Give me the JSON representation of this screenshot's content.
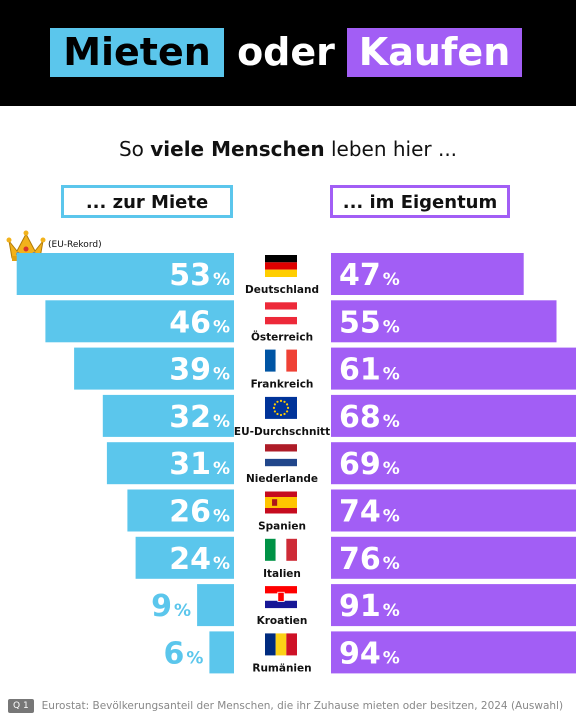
{
  "header": {
    "title_part1": "Mieten",
    "title_part2": "oder",
    "title_part3": "Kaufen"
  },
  "subtitle": {
    "pre": "So ",
    "bold": "viele Menschen",
    "post": " leben hier ..."
  },
  "labels": {
    "left": "... zur Miete",
    "right": "... im Eigentum"
  },
  "annotation": {
    "record": "(EU-Rekord)"
  },
  "colors": {
    "rent": "#5bc6ec",
    "own": "#a25ef5",
    "header_bg": "#000000"
  },
  "chart_data": {
    "type": "bar",
    "categories": [
      "Deutschland",
      "Österreich",
      "Frankreich",
      "EU-Durchschnitt",
      "Niederlande",
      "Spanien",
      "Italien",
      "Kroatien",
      "Rumänien"
    ],
    "flags": [
      "flag-germany",
      "flag-austria",
      "flag-france",
      "flag-eu",
      "flag-netherlands",
      "flag-spain",
      "flag-italy",
      "flag-croatia",
      "flag-romania"
    ],
    "unit": "%",
    "series": [
      {
        "name": "... zur Miete",
        "values": [
          53,
          46,
          39,
          32,
          31,
          26,
          24,
          9,
          6
        ]
      },
      {
        "name": "... im Eigentum",
        "values": [
          47,
          55,
          61,
          68,
          69,
          74,
          76,
          91,
          94
        ]
      }
    ],
    "ylim": [
      0,
      100
    ]
  },
  "footer": {
    "badge": "Q 1",
    "source": "Eurostat: Bevölkerungsanteil der Menschen, die ihr Zuhause mieten oder besitzen, 2024 (Auswahl)"
  }
}
